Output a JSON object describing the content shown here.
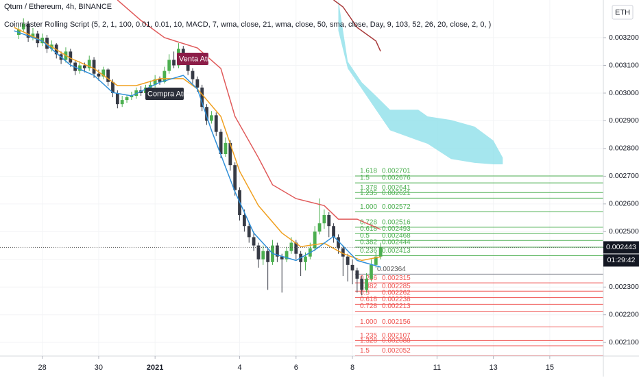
{
  "chart_data": {
    "type": "candlestick",
    "title": "Qtum / Ethereum, 4h, BINANCE",
    "indicator": "Coinmaster Rolling Script (5, 2, 1, 100, 0.01, 0.01, 10, MACD, 7, wma, close, 21, wma, close, 50, sma, close, Day, 9, 103, 52, 26, 20, close, 2, 0, )",
    "currency": "ETH",
    "xlim": [
      -9,
      119.4
    ],
    "ylim": [
      0.002051,
      0.003336
    ],
    "xticks": [
      {
        "value": 0,
        "label": "28"
      },
      {
        "value": 12,
        "label": "30"
      },
      {
        "value": 24,
        "label": "2021"
      },
      {
        "value": 42,
        "label": "4"
      },
      {
        "value": 54,
        "label": "6"
      },
      {
        "value": 66,
        "label": "8"
      },
      {
        "value": 84,
        "label": "11"
      },
      {
        "value": 96,
        "label": "13"
      },
      {
        "value": 108,
        "label": "15"
      }
    ],
    "yticks": [
      {
        "value": 0.0021,
        "label": "0.002100"
      },
      {
        "value": 0.0022,
        "label": "0.002200"
      },
      {
        "value": 0.0023,
        "label": "0.002300"
      },
      {
        "value": 0.0024,
        "label": "0.002400"
      },
      {
        "value": 0.0025,
        "label": "0.002500"
      },
      {
        "value": 0.0026,
        "label": "0.002600"
      },
      {
        "value": 0.0027,
        "label": "0.002700"
      },
      {
        "value": 0.0028,
        "label": "0.002800"
      },
      {
        "value": 0.0029,
        "label": "0.002900"
      },
      {
        "value": 0.003,
        "label": "0.003000"
      },
      {
        "value": 0.0031,
        "label": "0.003100"
      },
      {
        "value": 0.0032,
        "label": "0.003200"
      }
    ],
    "up_color": "#4caf50",
    "down_color": "#363a45",
    "x": [
      -5,
      -4,
      -3,
      -2,
      -1,
      0,
      1,
      2,
      3,
      4,
      5,
      6,
      7,
      8,
      9,
      10,
      11,
      12,
      13,
      14,
      15,
      16,
      17,
      18,
      19,
      20,
      21,
      22,
      23,
      24,
      25,
      26,
      27,
      28,
      29,
      30,
      31,
      32,
      33,
      34,
      35,
      36,
      37,
      38,
      39,
      40,
      41,
      42,
      43,
      44,
      45,
      46,
      47,
      48,
      49,
      50,
      51,
      52,
      53,
      54,
      55,
      56,
      57,
      58,
      59,
      60,
      61,
      62,
      63,
      64,
      65,
      66,
      67,
      68,
      69,
      70,
      71,
      72
    ],
    "open": [
      0.00321,
      0.00323,
      0.00325,
      0.0032,
      0.003215,
      0.00318,
      0.0032,
      0.00316,
      0.003175,
      0.00314,
      0.00312,
      0.00315,
      0.00311,
      0.00308,
      0.0031,
      0.00309,
      0.00312,
      0.00307,
      0.00306,
      0.003085,
      0.00304,
      0.003,
      0.00296,
      0.002975,
      0.002985,
      0.00299,
      0.00301,
      0.003,
      0.00302,
      0.00303,
      0.00305,
      0.00304,
      0.00308,
      0.00312,
      0.0031,
      0.00316,
      0.00313,
      0.00308,
      0.00305,
      0.00302,
      0.00295,
      0.0029,
      0.00292,
      0.00286,
      0.00278,
      0.00282,
      0.00274,
      0.00265,
      0.00256,
      0.00252,
      0.00248,
      0.00245,
      0.0024,
      0.00243,
      0.00239,
      0.00245,
      0.00241,
      0.0024,
      0.00243,
      0.00246,
      0.00242,
      0.00239,
      0.00241,
      0.00244,
      0.0025,
      0.00253,
      0.00256,
      0.00252,
      0.00248,
      0.00244,
      0.00241,
      0.00238,
      0.00236,
      0.00233,
      0.00229,
      0.00233,
      0.00238,
      0.00241
    ],
    "high": [
      0.00325,
      0.00327,
      0.00326,
      0.003235,
      0.003225,
      0.003215,
      0.00321,
      0.00319,
      0.00318,
      0.00315,
      0.003165,
      0.00316,
      0.00312,
      0.003115,
      0.00311,
      0.003135,
      0.00313,
      0.003085,
      0.003095,
      0.00309,
      0.00305,
      0.00301,
      0.00299,
      0.002995,
      0.003005,
      0.00302,
      0.003025,
      0.00303,
      0.003045,
      0.003065,
      0.00306,
      0.003095,
      0.00314,
      0.00315,
      0.00318,
      0.00317,
      0.00314,
      0.00309,
      0.00306,
      0.00303,
      0.00296,
      0.002935,
      0.00293,
      0.00287,
      0.00284,
      0.00283,
      0.00275,
      0.00266,
      0.00258,
      0.00253,
      0.0025,
      0.00246,
      0.00245,
      0.00244,
      0.00247,
      0.00246,
      0.00242,
      0.002445,
      0.00248,
      0.00247,
      0.00243,
      0.002425,
      0.00246,
      0.00252,
      0.00262,
      0.00258,
      0.00257,
      0.00253,
      0.00249,
      0.00245,
      0.00242,
      0.0024,
      0.00237,
      0.00234,
      0.00235,
      0.0024,
      0.002425,
      0.00246
    ],
    "low": [
      0.003195,
      0.00322,
      0.003185,
      0.00319,
      0.003165,
      0.00317,
      0.003145,
      0.00315,
      0.003125,
      0.003105,
      0.00311,
      0.003095,
      0.003065,
      0.00307,
      0.003075,
      0.00308,
      0.003055,
      0.003045,
      0.00305,
      0.003025,
      0.002985,
      0.002945,
      0.00295,
      0.002965,
      0.002975,
      0.00298,
      0.00299,
      0.00299,
      0.00301,
      0.00302,
      0.00303,
      0.003035,
      0.00307,
      0.00309,
      0.00309,
      0.003115,
      0.003065,
      0.003035,
      0.003005,
      0.002935,
      0.002885,
      0.00289,
      0.002845,
      0.002765,
      0.00277,
      0.00272,
      0.00263,
      0.00254,
      0.0025,
      0.00246,
      0.00243,
      0.00237,
      0.00238,
      0.00229,
      0.00238,
      0.00239,
      0.00228,
      0.00239,
      0.00242,
      0.0024,
      0.00234,
      0.00236,
      0.0024,
      0.00243,
      0.00249,
      0.00251,
      0.00248,
      0.00246,
      0.00242,
      0.00234,
      0.00232,
      0.00231,
      0.00228,
      0.00227,
      0.00228,
      0.00232,
      0.00237,
      0.0024
    ],
    "close": [
      0.00323,
      0.00325,
      0.0032,
      0.003215,
      0.00318,
      0.0032,
      0.00316,
      0.003175,
      0.00314,
      0.00312,
      0.00315,
      0.00311,
      0.00308,
      0.0031,
      0.00309,
      0.00312,
      0.00307,
      0.00306,
      0.003085,
      0.00304,
      0.003,
      0.00296,
      0.002975,
      0.002985,
      0.00299,
      0.00301,
      0.003,
      0.00302,
      0.00303,
      0.00305,
      0.00304,
      0.00308,
      0.00312,
      0.0031,
      0.00316,
      0.00313,
      0.00308,
      0.00305,
      0.00302,
      0.00295,
      0.0029,
      0.00292,
      0.00286,
      0.00278,
      0.00282,
      0.00274,
      0.00265,
      0.00256,
      0.00252,
      0.00248,
      0.00245,
      0.0024,
      0.00243,
      0.00239,
      0.00245,
      0.00241,
      0.0024,
      0.00243,
      0.00246,
      0.00242,
      0.00239,
      0.00241,
      0.00244,
      0.0025,
      0.00253,
      0.00256,
      0.00252,
      0.00248,
      0.00244,
      0.00241,
      0.00238,
      0.00236,
      0.00233,
      0.00229,
      0.00233,
      0.00238,
      0.00241,
      0.002443
    ],
    "lines": [
      {
        "color": "#e05a5a",
        "x": [
          16,
          21,
          26,
          33,
          38,
          41,
          46,
          49,
          54,
          60,
          63,
          67,
          72
        ],
        "values": [
          0.003336,
          0.003262,
          0.0032,
          0.003163,
          0.003089,
          0.002916,
          0.002767,
          0.002669,
          0.002619,
          0.002594,
          0.002545,
          0.002545,
          0.002508
        ]
      },
      {
        "color": "#f0a020",
        "x": [
          -6,
          0,
          6,
          11,
          16,
          20,
          25,
          30,
          33,
          38,
          42,
          46,
          51,
          55,
          60,
          64,
          68,
          72
        ],
        "values": [
          0.003237,
          0.003188,
          0.003126,
          0.003089,
          0.003027,
          0.003027,
          0.003052,
          0.003052,
          0.003015,
          0.002916,
          0.002718,
          0.002594,
          0.002495,
          0.002446,
          0.002458,
          0.002421,
          0.002396,
          0.002409
        ]
      },
      {
        "color": "#2f8fd8",
        "x": [
          -6,
          0,
          6,
          11,
          15,
          19,
          25,
          30,
          33,
          36,
          41,
          45,
          49,
          54,
          58,
          62,
          67,
          72
        ],
        "values": [
          0.003225,
          0.003188,
          0.003101,
          0.003064,
          0.003002,
          0.00299,
          0.003039,
          0.003064,
          0.003015,
          0.002866,
          0.002644,
          0.002495,
          0.002421,
          0.002396,
          0.002434,
          0.002483,
          0.002396,
          0.002372
        ]
      },
      {
        "color": "#a83a3a",
        "x": [
          62,
          64,
          67,
          71,
          72
        ],
        "values": [
          0.003336,
          0.003311,
          0.003237,
          0.003188,
          0.003151
        ]
      }
    ],
    "cloud": {
      "color": "#8fe0ea",
      "x": [
        63,
        65,
        68,
        71,
        74,
        80,
        82,
        87,
        92,
        96,
        98
      ],
      "upper": [
        0.003336,
        0.003114,
        0.003039,
        0.00299,
        0.00294,
        0.00294,
        0.002916,
        0.002903,
        0.002879,
        0.002829,
        0.002767
      ],
      "lower": [
        0.003225,
        0.003089,
        0.003015,
        0.00294,
        0.002866,
        0.002829,
        0.002817,
        0.002762,
        0.002748,
        0.002743,
        0.002743
      ]
    },
    "annotations": [
      "Venta Atr",
      "Compra Atr"
    ],
    "fib_levels": [
      {
        "ratio": "1.618",
        "value": 0.002701,
        "color": "#4caf50"
      },
      {
        "ratio": "1.5",
        "value": 0.002676,
        "color": "#4caf50"
      },
      {
        "ratio": "1.378",
        "value": 0.002641,
        "color": "#4caf50"
      },
      {
        "ratio": "1.235",
        "value": 0.002621,
        "color": "#4caf50"
      },
      {
        "ratio": "1.000",
        "value": 0.002572,
        "color": "#4caf50"
      },
      {
        "ratio": "0.728",
        "value": 0.002516,
        "color": "#4caf50"
      },
      {
        "ratio": "0.618",
        "value": 0.002493,
        "color": "#4caf50"
      },
      {
        "ratio": "0.5",
        "value": 0.002468,
        "color": "#4caf50"
      },
      {
        "ratio": "0.382",
        "value": 0.002444,
        "color": "#4caf50"
      },
      {
        "ratio": "0.236",
        "value": 0.002413,
        "color": "#4caf50"
      },
      {
        "ratio": "0.236",
        "value": 0.002315,
        "color": "#ef5350"
      },
      {
        "ratio": "0.382",
        "value": 0.002285,
        "color": "#ef5350"
      },
      {
        "ratio": "0.5",
        "value": 0.002262,
        "color": "#ef5350"
      },
      {
        "ratio": "0.618",
        "value": 0.002238,
        "color": "#ef5350"
      },
      {
        "ratio": "0.728",
        "value": 0.002213,
        "color": "#ef5350"
      },
      {
        "ratio": "1.000",
        "value": 0.002156,
        "color": "#ef5350"
      },
      {
        "ratio": "1.235",
        "value": 0.002107,
        "color": "#ef5350"
      },
      {
        "ratio": "1.328",
        "value": 0.002088,
        "color": "#ef5350"
      },
      {
        "ratio": "1.5",
        "value": 0.002052,
        "color": "#ef5350"
      }
    ],
    "fib_base": 0.002364,
    "last_price": 0.002443,
    "countdown": "01:29:42"
  }
}
